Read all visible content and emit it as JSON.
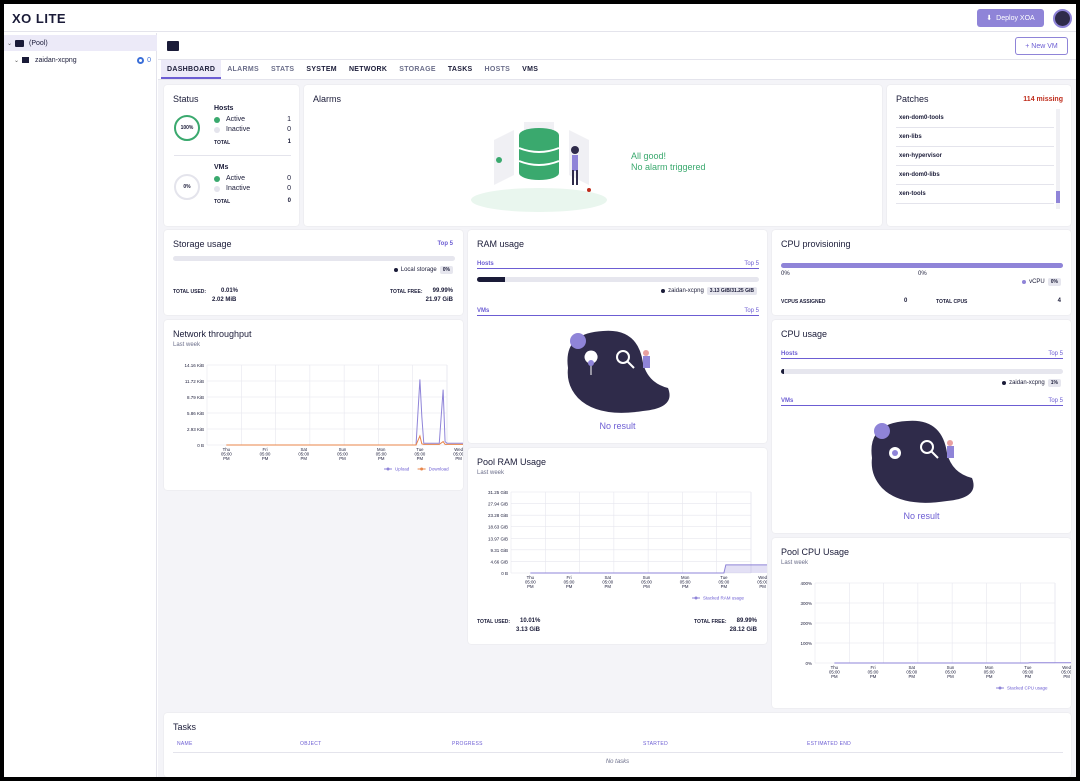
{
  "app": {
    "logo": "XO LITE",
    "deploy_label": "Deploy XOA",
    "new_vm_label": "+ New VM"
  },
  "colors": {
    "accent": "#6c5dd3",
    "accent_light": "#8f84d8",
    "success": "#3aa96e",
    "danger": "#bf2c1b"
  },
  "sidebar": {
    "pool_label": "(Pool)",
    "host_label": "zaidan-xcpng",
    "host_vm_count": "0"
  },
  "tabs": [
    "DASHBOARD",
    "ALARMS",
    "STATS",
    "SYSTEM",
    "NETWORK",
    "STORAGE",
    "TASKS",
    "HOSTS",
    "VMS"
  ],
  "status": {
    "title": "Status",
    "hosts": {
      "label": "Hosts",
      "percent": "100%",
      "active_label": "Active",
      "active": "1",
      "inactive_label": "Inactive",
      "inactive": "0",
      "total_label": "TOTAL",
      "total": "1"
    },
    "vms": {
      "label": "VMs",
      "percent": "0%",
      "active_label": "Active",
      "active": "0",
      "inactive_label": "Inactive",
      "inactive": "0",
      "total_label": "TOTAL",
      "total": "0"
    }
  },
  "alarms": {
    "title": "Alarms",
    "line1": "All good!",
    "line2": "No alarm triggered"
  },
  "patches": {
    "title": "Patches",
    "missing": "114 missing",
    "items": [
      "xen-dom0-tools",
      "xen-libs",
      "xen-hypervisor",
      "xen-dom0-libs",
      "xen-tools"
    ]
  },
  "storage": {
    "title": "Storage usage",
    "top": "Top 5",
    "legend_label": "Local storage",
    "legend_pct": "0%",
    "bar_fraction": 0.0001,
    "total_used_label": "TOTAL USED:",
    "total_used_pct": "0.01%",
    "total_used_size": "2.02 MiB",
    "total_free_label": "TOTAL FREE:",
    "total_free_pct": "99.99%",
    "total_free_size": "21.97 GiB"
  },
  "ram": {
    "title": "RAM usage",
    "hosts_label": "Hosts",
    "vms_label": "VMs",
    "top": "Top 5",
    "host_name": "zaidan-xcpng",
    "host_value": "3.13 GiB/31.25 GiB",
    "bar_fraction": 0.1,
    "no_result": "No result"
  },
  "cpu_prov": {
    "title": "CPU provisioning",
    "left_pct": "0%",
    "mid_pct": "0%",
    "bar_fraction": 1.0,
    "legend_label": "vCPU",
    "legend_pct": "0%",
    "vcpus_label": "VCPUS ASSIGNED",
    "vcpus": "0",
    "total_label": "TOTAL CPUS",
    "total": "4"
  },
  "cpu_usage": {
    "title": "CPU usage",
    "hosts_label": "Hosts",
    "vms_label": "VMs",
    "top": "Top 5",
    "host_name": "zaidan-xcpng",
    "host_pct": "1%",
    "bar_fraction": 0.01,
    "no_result": "No result"
  },
  "network": {
    "title": "Network throughput",
    "subtitle": "Last week",
    "chart_data": {
      "type": "line",
      "categories": [
        "Thu 05:00 PM",
        "Fri 05:00 PM",
        "Sat 05:00 PM",
        "Sun 05:00 PM",
        "Mon 05:00 PM",
        "Tue 05:00 PM",
        "Wed 05:00 PM"
      ],
      "x_labels": [
        [
          "Thu",
          "05:00",
          "PM"
        ],
        [
          "Fri",
          "05:00",
          "PM"
        ],
        [
          "Sat",
          "05:00",
          "PM"
        ],
        [
          "Sun",
          "05:00",
          "PM"
        ],
        [
          "Mon",
          "05:00",
          "PM"
        ],
        [
          "Tue",
          "05:00",
          "PM"
        ],
        [
          "Wed",
          "05:00",
          "PM"
        ]
      ],
      "y_ticks": [
        "0 B",
        "2.93 KiB",
        "5.86 KiB",
        "8.79 KiB",
        "11.72 KiB",
        "14.16 KiB"
      ],
      "ylim_kib": [
        0,
        14.16
      ],
      "series": [
        {
          "name": "Upload",
          "color": "#8f84d8",
          "x": [
            0,
            4.9,
            5.0,
            5.05,
            5.1,
            5.3,
            5.5,
            5.6,
            5.65,
            5.7,
            6.0,
            6.2
          ],
          "values": [
            0,
            0,
            11.6,
            5.0,
            0.3,
            0.3,
            0.3,
            9.8,
            0.6,
            0.3,
            0.3,
            0.3
          ]
        },
        {
          "name": "Download",
          "color": "#e8854a",
          "x": [
            0,
            4.9,
            5.0,
            5.05,
            5.1,
            5.5,
            5.6,
            5.65,
            6.0,
            6.2
          ],
          "values": [
            0,
            0,
            1.6,
            0.2,
            0.1,
            0.1,
            0.6,
            0.1,
            0.1,
            0.1
          ]
        }
      ]
    }
  },
  "pool_ram": {
    "title": "Pool RAM Usage",
    "subtitle": "Last week",
    "total_used_label": "TOTAL USED:",
    "total_used_pct": "10.01%",
    "total_used_size": "3.13 GiB",
    "total_free_label": "TOTAL FREE:",
    "total_free_pct": "89.99%",
    "total_free_size": "28.12 GiB",
    "chart_data": {
      "type": "area",
      "categories": [
        "Thu 05:00 PM",
        "Fri 05:00 PM",
        "Sat 05:00 PM",
        "Sun 05:00 PM",
        "Mon 05:00 PM",
        "Tue 05:00 PM",
        "Wed 05:00 PM"
      ],
      "x_labels": [
        [
          "Thu",
          "05:00",
          "PM"
        ],
        [
          "Fri",
          "05:00",
          "PM"
        ],
        [
          "Sat",
          "05:00",
          "PM"
        ],
        [
          "Sun",
          "05:00",
          "PM"
        ],
        [
          "Mon",
          "05:00",
          "PM"
        ],
        [
          "Tue",
          "05:00",
          "PM"
        ],
        [
          "Wed",
          "05:00",
          "PM"
        ]
      ],
      "y_ticks": [
        "0 B",
        "4.66 GiB",
        "9.31 GiB",
        "13.97 GiB",
        "18.63 GiB",
        "23.28 GiB",
        "27.94 GiB",
        "31.25 GiB"
      ],
      "ylim_gib": [
        0,
        31.25
      ],
      "series": [
        {
          "name": "Stacked RAM usage",
          "color": "#8f84d8",
          "x": [
            0,
            5.0,
            5.05,
            6.2
          ],
          "values": [
            0,
            0,
            3.13,
            3.13
          ]
        }
      ]
    }
  },
  "pool_cpu": {
    "title": "Pool CPU Usage",
    "subtitle": "Last week",
    "chart_data": {
      "type": "line",
      "categories": [
        "Thu 05:00 PM",
        "Fri 05:00 PM",
        "Sat 05:00 PM",
        "Sun 05:00 PM",
        "Mon 05:00 PM",
        "Tue 05:00 PM",
        "Wed 05:00 PM"
      ],
      "x_labels": [
        [
          "Thu",
          "05:00",
          "PM"
        ],
        [
          "Fri",
          "05:00",
          "PM"
        ],
        [
          "Sat",
          "05:00",
          "PM"
        ],
        [
          "Sun",
          "05:00",
          "PM"
        ],
        [
          "Mon",
          "05:00",
          "PM"
        ],
        [
          "Tue",
          "05:00",
          "PM"
        ],
        [
          "Wed",
          "05:00",
          "PM"
        ]
      ],
      "y_ticks": [
        "0%",
        "100%",
        "200%",
        "300%",
        "400%"
      ],
      "ylim_pct": [
        0,
        400
      ],
      "series": [
        {
          "name": "Stacked CPU usage",
          "color": "#8f84d8",
          "x": [
            0,
            5.0,
            5.05,
            6.2
          ],
          "values": [
            0,
            0,
            1,
            1
          ]
        }
      ]
    }
  },
  "tasks": {
    "title": "Tasks",
    "columns": [
      "NAME",
      "OBJECT",
      "PROGRESS",
      "STARTED",
      "ESTIMATED END"
    ],
    "empty": "No tasks"
  }
}
